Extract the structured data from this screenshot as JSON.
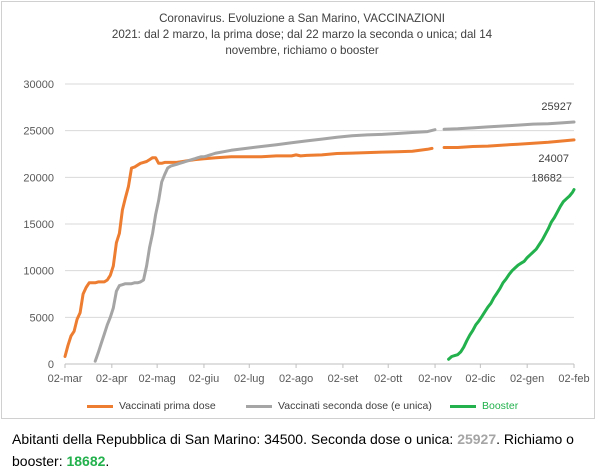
{
  "chart_data": {
    "type": "line",
    "title_lines": [
      "Coronavirus. Evoluzione a San Marino, VACCINAZIONI",
      "2021: dal 2 marzo, la prima dose; dal  22 marzo la seconda o unica; dal 14",
      "novembre, richiamo o booster"
    ],
    "x_tick_labels": [
      "02-mar",
      "02-apr",
      "02-mag",
      "02-giu",
      "02-lug",
      "02-ago",
      "02-set",
      "02-ott",
      "02-nov",
      "02-dic",
      "02-gen",
      "02-feb"
    ],
    "x_tick_days": [
      0,
      31,
      61,
      92,
      122,
      153,
      184,
      214,
      245,
      275,
      306,
      337
    ],
    "xlim_days": [
      0,
      337
    ],
    "y_ticks": [
      0,
      5000,
      10000,
      15000,
      20000,
      25000,
      30000
    ],
    "y_tick_labels": [
      "0",
      "5000",
      "10000",
      "15000",
      "20000",
      "25000",
      "30000"
    ],
    "ylim": [
      0,
      30000
    ],
    "grid": "horizontal",
    "legend_position": "bottom",
    "series": [
      {
        "name": "Vaccinati prima dose",
        "color": "#ed7d31",
        "segments": [
          {
            "x": [
              0,
              2,
              4,
              6,
              8,
              10,
              12,
              14,
              16,
              18,
              20,
              22,
              24,
              26,
              28,
              30,
              32,
              34,
              36,
              38,
              40,
              42,
              44,
              46,
              48,
              50,
              52,
              54,
              56,
              58,
              60,
              62,
              64,
              66,
              68,
              70,
              72,
              74,
              78,
              82,
              86,
              92,
              100,
              110,
              120,
              130,
              140,
              150,
              153,
              156,
              160,
              170,
              180,
              190,
              200,
              210,
              220,
              230,
              240,
              243
            ],
            "y": [
              800,
              2000,
              3000,
              3500,
              4800,
              5500,
              7500,
              8200,
              8700,
              8700,
              8700,
              8800,
              8800,
              8800,
              9000,
              9500,
              10500,
              13000,
              14000,
              16500,
              17800,
              19000,
              21000,
              21100,
              21300,
              21500,
              21600,
              21700,
              21900,
              22100,
              22100,
              21500,
              21500,
              21600,
              21600,
              21600,
              21600,
              21600,
              21700,
              21800,
              21900,
              22000,
              22100,
              22200,
              22200,
              22200,
              22300,
              22300,
              22400,
              22300,
              22350,
              22400,
              22550,
              22600,
              22650,
              22700,
              22750,
              22800,
              23000,
              23100
            ]
          },
          {
            "x": [
              251,
              260,
              270,
              280,
              290,
              300,
              310,
              320,
              330,
              337
            ],
            "y": [
              23200,
              23200,
              23300,
              23350,
              23450,
              23550,
              23650,
              23750,
              23900,
              24007
            ]
          }
        ],
        "end_label": "24007"
      },
      {
        "name": "Vaccinati seconda dose (e unica)",
        "color": "#a5a5a5",
        "segments": [
          {
            "x": [
              20,
              22,
              24,
              26,
              28,
              30,
              32,
              34,
              36,
              38,
              40,
              42,
              44,
              46,
              48,
              50,
              52,
              54,
              56,
              58,
              60,
              62,
              64,
              66,
              68,
              70,
              72,
              74,
              76,
              78,
              80,
              82,
              84,
              86,
              88,
              90,
              92,
              94,
              96,
              98,
              100,
              110,
              120,
              130,
              140,
              150,
              160,
              170,
              180,
              190,
              200,
              210,
              220,
              230,
              240,
              245
            ],
            "y": [
              300,
              1200,
              2200,
              3200,
              4200,
              5000,
              6000,
              7800,
              8400,
              8500,
              8600,
              8600,
              8600,
              8700,
              8700,
              8800,
              9000,
              10500,
              12500,
              14000,
              16000,
              17500,
              19500,
              20300,
              21000,
              21200,
              21300,
              21400,
              21500,
              21600,
              21700,
              21800,
              21900,
              22000,
              22100,
              22200,
              22200,
              22300,
              22400,
              22500,
              22600,
              22900,
              23100,
              23300,
              23500,
              23700,
              23900,
              24100,
              24300,
              24450,
              24550,
              24600,
              24700,
              24800,
              24900,
              25100
            ]
          },
          {
            "x": [
              251,
              260,
              270,
              280,
              290,
              300,
              310,
              320,
              330,
              337
            ],
            "y": [
              25150,
              25200,
              25300,
              25400,
              25500,
              25600,
              25700,
              25750,
              25850,
              25927
            ]
          }
        ],
        "end_label": "25927"
      },
      {
        "name": "Booster",
        "color": "#22b14c",
        "segments": [
          {
            "x": [
              254,
              256,
              258,
              260,
              262,
              264,
              266,
              268,
              270,
              272,
              274,
              276,
              278,
              280,
              282,
              284,
              286,
              288,
              290,
              292,
              294,
              296,
              298,
              300,
              302,
              304,
              306,
              308,
              310,
              312,
              314,
              316,
              318,
              320,
              322,
              324,
              326,
              328,
              330,
              332,
              334,
              336,
              337
            ],
            "y": [
              500,
              800,
              900,
              1000,
              1300,
              1800,
              2500,
              3100,
              3600,
              4200,
              4600,
              5100,
              5600,
              6100,
              6500,
              7100,
              7600,
              8100,
              8700,
              9100,
              9600,
              10000,
              10300,
              10600,
              10800,
              11000,
              11400,
              11700,
              12000,
              12300,
              12800,
              13300,
              13900,
              14500,
              15200,
              15700,
              16300,
              16900,
              17400,
              17700,
              18000,
              18400,
              18682
            ]
          }
        ],
        "end_label": "18682"
      }
    ]
  },
  "caption": {
    "prefix": "Abitanti della  Repubblica di San Marino:  34500. Seconda dose o unica:  ",
    "second_value": "25927",
    "middle": ".  Richiamo o booster: ",
    "booster_value": "18682",
    "suffix": "."
  }
}
